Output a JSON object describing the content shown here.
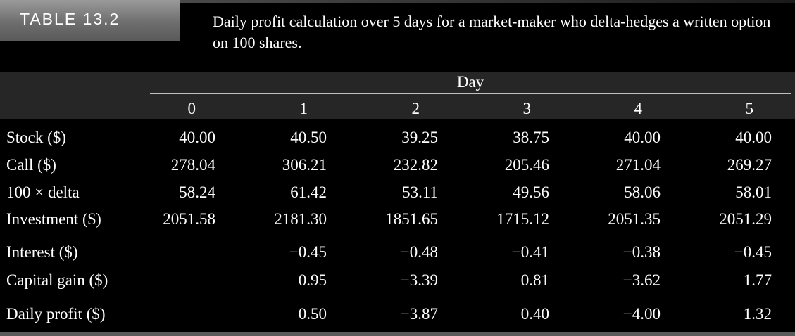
{
  "table_label": "TABLE 13.2",
  "caption": "Daily profit calculation over 5 days for a market-maker who delta-hedges a written option on 100 shares.",
  "group_header": "Day",
  "columns": [
    "0",
    "1",
    "2",
    "3",
    "4",
    "5"
  ],
  "rows": [
    {
      "label": "Stock ($)",
      "values": [
        "40.00",
        "40.50",
        "39.25",
        "38.75",
        "40.00",
        "40.00"
      ]
    },
    {
      "label": "Call ($)",
      "values": [
        "278.04",
        "306.21",
        "232.82",
        "205.46",
        "271.04",
        "269.27"
      ]
    },
    {
      "label": "100 × delta",
      "values": [
        "58.24",
        "61.42",
        "53.11",
        "49.56",
        "58.06",
        "58.01"
      ]
    },
    {
      "label": "Investment ($)",
      "values": [
        "2051.58",
        "2181.30",
        "1851.65",
        "1715.12",
        "2051.35",
        "2051.29"
      ]
    },
    {
      "label": "Interest ($)",
      "values": [
        "",
        "−0.45",
        "−0.48",
        "−0.41",
        "−0.38",
        "−0.45"
      ]
    },
    {
      "label": "Capital gain ($)",
      "values": [
        "",
        "0.95",
        "−3.39",
        "0.81",
        "−3.62",
        "1.77"
      ]
    },
    {
      "label": "Daily profit ($)",
      "values": [
        "",
        "0.50",
        "−3.87",
        "0.40",
        "−4.00",
        "1.32"
      ]
    }
  ]
}
